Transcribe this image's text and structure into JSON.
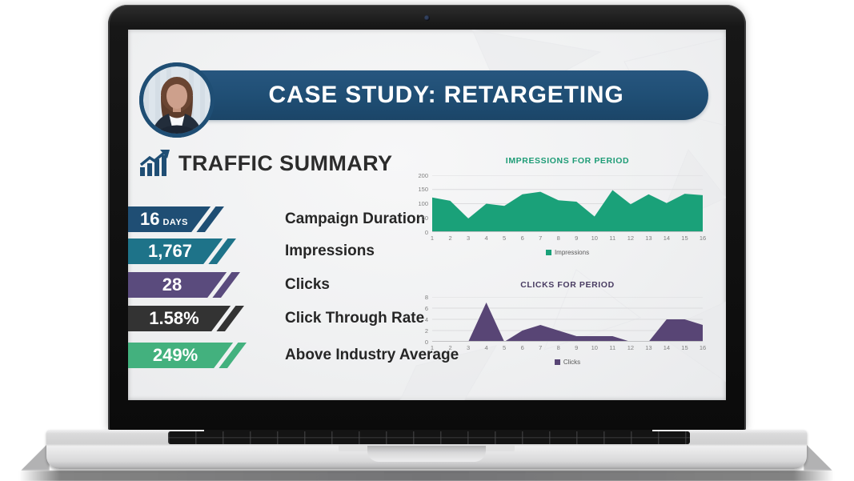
{
  "slide": {
    "banner": {
      "title": "CASE STUDY: RETARGETING",
      "color": "#1F4E74"
    },
    "section_title": "TRAFFIC SUMMARY",
    "stats": [
      {
        "value": "16",
        "unit": "DAYS",
        "label": "Campaign Duration",
        "color": "#1F4E74"
      },
      {
        "value": "1,767",
        "unit": "",
        "label": "Impressions",
        "color": "#1E7389"
      },
      {
        "value": "28",
        "unit": "",
        "label": "Clicks",
        "color": "#5A4B7D"
      },
      {
        "value": "1.58%",
        "unit": "",
        "label": "Click Through Rate",
        "color": "#333333"
      },
      {
        "value": "249%",
        "unit": "",
        "label": "Above Industry Average",
        "color": "#43B17E"
      }
    ]
  },
  "chart_data": [
    {
      "type": "area",
      "title": "IMPRESSIONS FOR PERIOD",
      "title_color": "#1E9C76",
      "area_color": "#1AA179",
      "legend": [
        "Impressions"
      ],
      "x": [
        1,
        2,
        3,
        4,
        5,
        6,
        7,
        8,
        9,
        10,
        11,
        12,
        13,
        14,
        15,
        16
      ],
      "values": [
        122,
        110,
        48,
        100,
        92,
        133,
        142,
        112,
        107,
        55,
        148,
        98,
        133,
        102,
        135,
        130
      ],
      "ylim": [
        0,
        200
      ],
      "yticks": [
        0,
        50,
        100,
        150,
        200
      ],
      "xlabel": "",
      "ylabel": "",
      "grid": true,
      "legend_position": "bottom"
    },
    {
      "type": "area",
      "title": "CLICKS FOR PERIOD",
      "title_color": "#493C62",
      "area_color": "#584575",
      "legend": [
        "Clicks"
      ],
      "x": [
        1,
        2,
        3,
        4,
        5,
        6,
        7,
        8,
        9,
        10,
        11,
        12,
        13,
        14,
        15,
        16
      ],
      "values": [
        0,
        0,
        0,
        7,
        0,
        2,
        3,
        2,
        1,
        1,
        1,
        0,
        0,
        4,
        4,
        3
      ],
      "ylim": [
        0,
        8
      ],
      "yticks": [
        0,
        2,
        4,
        6,
        8
      ],
      "xlabel": "",
      "ylabel": "",
      "grid": true,
      "legend_position": "bottom"
    }
  ]
}
